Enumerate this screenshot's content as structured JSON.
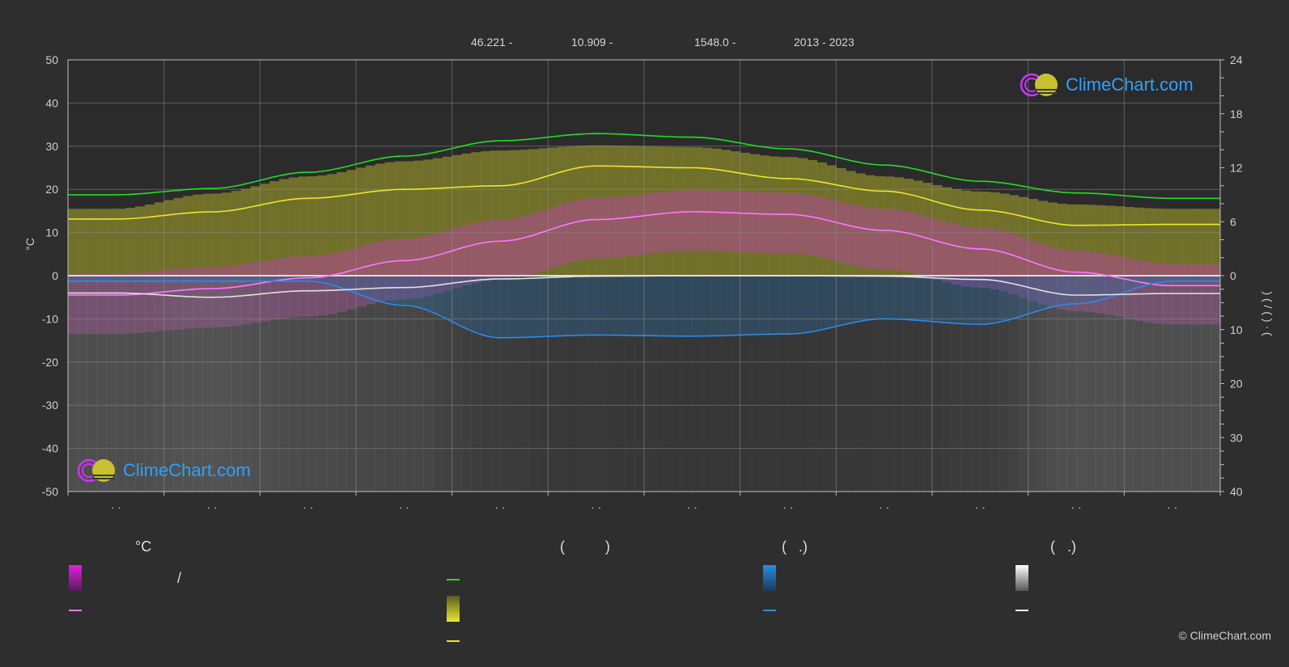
{
  "header": {
    "lat": "46.221 -",
    "lon": "10.909 -",
    "elev": "1548.0 -",
    "years": "2013 - 2023"
  },
  "left_axis_label": "°C",
  "right_axis_label": ")   (   /   (   )   ·   (",
  "logo": {
    "text": "ClimeChart.com"
  },
  "copyright": "© ClimeChart.com",
  "legend": {
    "col1_head": "°C",
    "col1_item1": "/",
    "col2_head": "(          )",
    "col3_head": "(   .)",
    "col4_head": "(   .)"
  },
  "colors": {
    "background": "#2e2e2e",
    "daylight": "#22dd22",
    "sunshine": "#e8e830",
    "avg_temp": "#ff77ff",
    "temp_range": "#e020e0",
    "rain": "#2a8ce8",
    "snow": "#e0e0e0"
  },
  "chart_data": {
    "type": "line",
    "x_tick_labels": [
      "· ·",
      "· ·",
      "· ·",
      "· ·",
      "· ·",
      "· ·",
      "· ·",
      "· ·",
      "· ·",
      "· ·",
      "· ·",
      "· ·"
    ],
    "left_axis": {
      "label": "°C",
      "ylim": [
        -50,
        50
      ],
      "ticks": [
        50,
        40,
        30,
        20,
        10,
        0,
        -10,
        -20,
        -30,
        -40,
        -50
      ]
    },
    "right_axis_top": {
      "ylim": [
        0,
        24
      ],
      "ticks": [
        24,
        18,
        12,
        6,
        0
      ]
    },
    "right_axis_bottom": {
      "ylim": [
        0,
        40
      ],
      "ticks": [
        10,
        20,
        30,
        40
      ]
    },
    "grid": true,
    "series": [
      {
        "key": "daylight",
        "axis": "hours",
        "values": [
          9.0,
          9.7,
          11.5,
          13.3,
          15.0,
          15.8,
          15.4,
          14.1,
          12.3,
          10.5,
          9.2,
          8.6
        ]
      },
      {
        "key": "sunshine",
        "axis": "hours",
        "values": [
          6.3,
          7.1,
          8.6,
          9.6,
          10.0,
          12.2,
          12.0,
          10.8,
          9.4,
          7.3,
          5.6,
          5.7
        ]
      },
      {
        "key": "temp_max_shade",
        "axis": "temp",
        "values": [
          15.5,
          19,
          23,
          26.5,
          29,
          30.2,
          29.8,
          27.5,
          23,
          19.5,
          16.5,
          15.5
        ]
      },
      {
        "key": "avg_temp",
        "axis": "temp",
        "values": [
          -4.5,
          -3.0,
          -0.5,
          3.5,
          8.0,
          13.0,
          14.8,
          14.2,
          10.5,
          6.2,
          0.8,
          -2.3
        ]
      },
      {
        "key": "snow",
        "axis": "precip",
        "values": [
          3.2,
          4.0,
          2.8,
          2.2,
          0.6,
          0.1,
          0.0,
          0.0,
          0.1,
          0.7,
          3.6,
          3.3
        ]
      },
      {
        "key": "rain",
        "axis": "precip",
        "values": [
          1.0,
          1.0,
          1.0,
          5.5,
          11.5,
          11.0,
          11.2,
          10.8,
          8.0,
          9.0,
          5.2,
          1.0
        ]
      }
    ]
  }
}
